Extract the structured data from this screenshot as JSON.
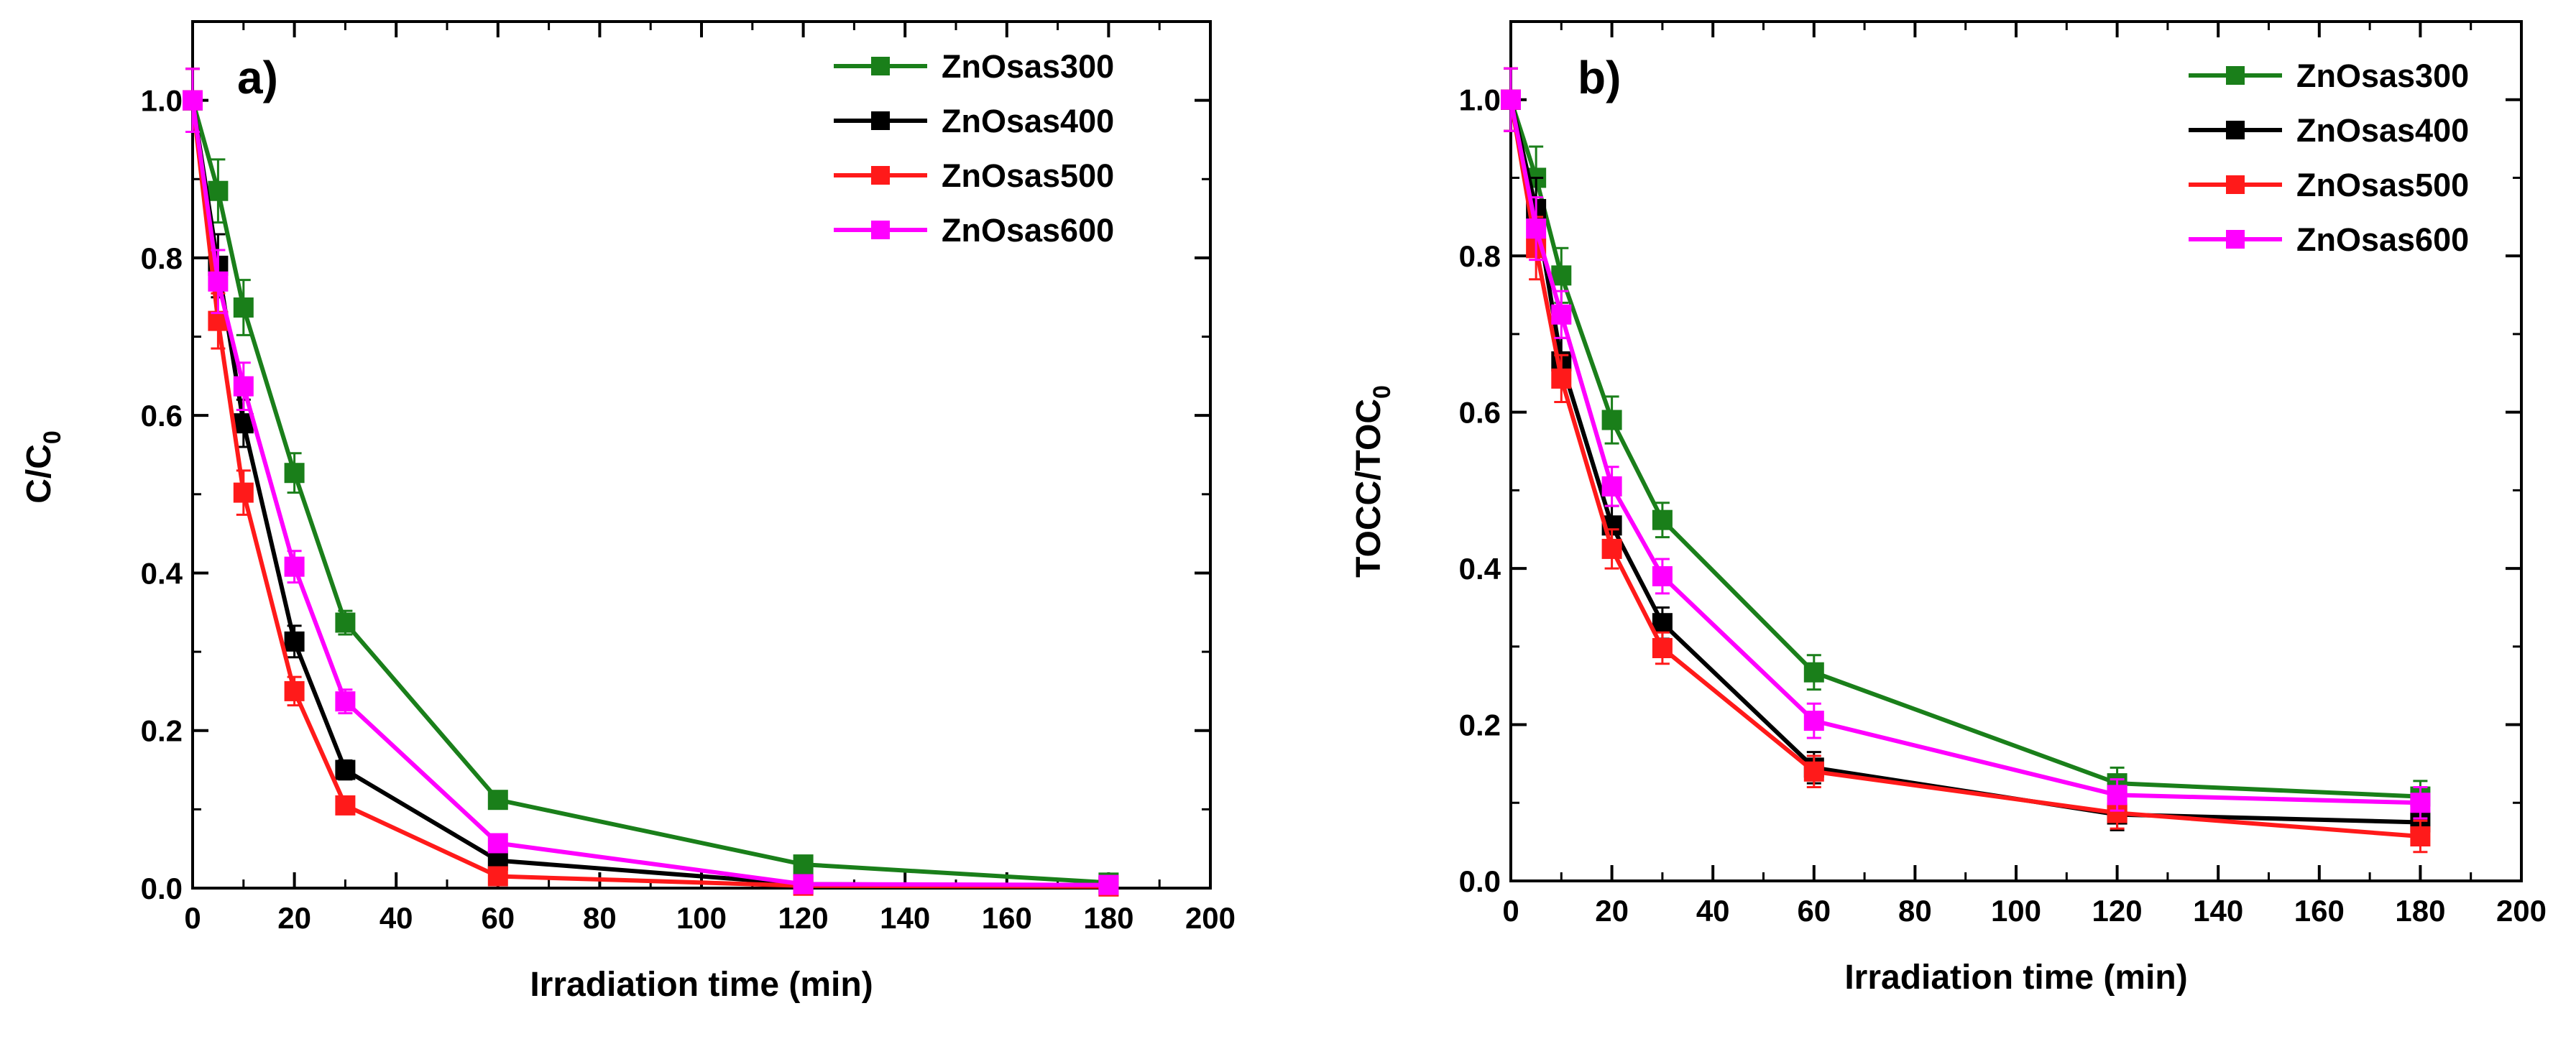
{
  "chart_data": [
    {
      "type": "line",
      "panel_label": "a)",
      "xlabel": "Irradiation time (min)",
      "ylabel": "C/C",
      "ylabel_sub": "0",
      "xlim": [
        0,
        200
      ],
      "ylim": [
        0,
        1.1
      ],
      "xticks": [
        "0",
        "20",
        "40",
        "60",
        "80",
        "100",
        "120",
        "140",
        "160",
        "180",
        "200"
      ],
      "yticks": [
        "0.0",
        "0.2",
        "0.4",
        "0.6",
        "0.8",
        "1.0"
      ],
      "legend_position": "top-right",
      "x": [
        0,
        5,
        10,
        20,
        30,
        60,
        120,
        180
      ],
      "series": [
        {
          "name": "ZnOsas300",
          "color": "#1a7f1a",
          "values": [
            1.0,
            0.885,
            0.737,
            0.527,
            0.337,
            0.112,
            0.03,
            0.007
          ],
          "errors": [
            0.04,
            0.04,
            0.035,
            0.025,
            0.015,
            0.008,
            0.005,
            0.004
          ]
        },
        {
          "name": "ZnOsas400",
          "color": "#000000",
          "values": [
            1.0,
            0.79,
            0.59,
            0.313,
            0.15,
            0.035,
            0.005,
            0.003
          ],
          "errors": [
            0.04,
            0.04,
            0.03,
            0.02,
            0.012,
            0.006,
            0.004,
            0.003
          ]
        },
        {
          "name": "ZnOsas500",
          "color": "#ff1a1a",
          "values": [
            1.0,
            0.72,
            0.502,
            0.25,
            0.105,
            0.015,
            0.003,
            0.002
          ],
          "errors": [
            0.04,
            0.035,
            0.028,
            0.018,
            0.01,
            0.005,
            0.003,
            0.002
          ]
        },
        {
          "name": "ZnOsas600",
          "color": "#ff00ff",
          "values": [
            1.0,
            0.77,
            0.637,
            0.408,
            0.237,
            0.057,
            0.005,
            0.004
          ],
          "errors": [
            0.04,
            0.04,
            0.03,
            0.02,
            0.015,
            0.007,
            0.004,
            0.003
          ]
        }
      ]
    },
    {
      "type": "line",
      "panel_label": "b)",
      "xlabel": "Irradiation time (min)",
      "ylabel": "TOCC/TOC",
      "ylabel_sub": "0",
      "xlim": [
        0,
        200
      ],
      "ylim": [
        0,
        1.1
      ],
      "xticks": [
        "0",
        "20",
        "40",
        "60",
        "80",
        "100",
        "120",
        "140",
        "160",
        "180",
        "200"
      ],
      "yticks": [
        "0.0",
        "0.2",
        "0.4",
        "0.6",
        "0.8",
        "1.0"
      ],
      "legend_position": "top-right",
      "x": [
        0,
        5,
        10,
        20,
        30,
        60,
        120,
        180
      ],
      "series": [
        {
          "name": "ZnOsas300",
          "color": "#1a7f1a",
          "values": [
            1.0,
            0.9,
            0.775,
            0.59,
            0.462,
            0.267,
            0.125,
            0.108
          ],
          "errors": [
            0.04,
            0.04,
            0.035,
            0.03,
            0.022,
            0.022,
            0.02,
            0.02
          ]
        },
        {
          "name": "ZnOsas400",
          "color": "#000000",
          "values": [
            1.0,
            0.86,
            0.665,
            0.455,
            0.33,
            0.145,
            0.085,
            0.075
          ],
          "errors": [
            0.04,
            0.04,
            0.03,
            0.025,
            0.02,
            0.02,
            0.02,
            0.02
          ]
        },
        {
          "name": "ZnOsas500",
          "color": "#ff1a1a",
          "values": [
            1.0,
            0.81,
            0.643,
            0.425,
            0.298,
            0.14,
            0.087,
            0.057
          ],
          "errors": [
            0.04,
            0.04,
            0.03,
            0.025,
            0.02,
            0.02,
            0.02,
            0.02
          ]
        },
        {
          "name": "ZnOsas600",
          "color": "#ff00ff",
          "values": [
            1.0,
            0.835,
            0.725,
            0.505,
            0.39,
            0.205,
            0.11,
            0.1
          ],
          "errors": [
            0.04,
            0.04,
            0.03,
            0.025,
            0.022,
            0.022,
            0.02,
            0.02
          ]
        }
      ]
    }
  ]
}
